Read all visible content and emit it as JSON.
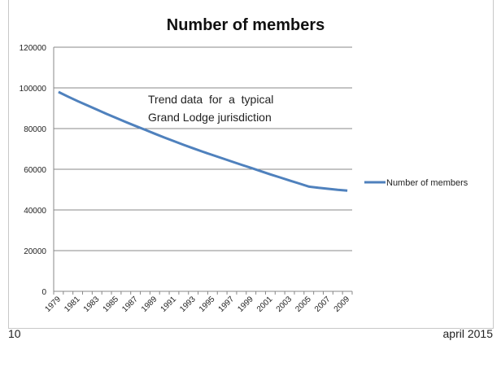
{
  "chart_data": {
    "type": "line",
    "title": "Number of members",
    "annotation": "Trend data for a typical Grand Lodge jurisdiction",
    "annotation_lines": [
      "Trend data  for  a  typical",
      "Grand Lodge jurisdiction"
    ],
    "xlabel": "",
    "ylabel": "",
    "ylim": [
      0,
      120000
    ],
    "yticks": [
      0,
      20000,
      40000,
      60000,
      80000,
      100000,
      120000
    ],
    "x": [
      1979,
      1980,
      1981,
      1982,
      1983,
      1984,
      1985,
      1986,
      1987,
      1988,
      1989,
      1990,
      1991,
      1992,
      1993,
      1994,
      1995,
      1996,
      1997,
      1998,
      1999,
      2000,
      2001,
      2002,
      2003,
      2004,
      2005,
      2006,
      2007,
      2008,
      2009
    ],
    "xtick_labels": [
      "1979",
      "1981",
      "1983",
      "1985",
      "1987",
      "1989",
      "1991",
      "1993",
      "1995",
      "1997",
      "1999",
      "2001",
      "2003",
      "2005",
      "2007",
      "2009"
    ],
    "series": [
      {
        "name": "Number of members",
        "color": "#4f81bd",
        "values": [
          98000,
          95700,
          93500,
          91400,
          89300,
          87200,
          85200,
          83200,
          81300,
          79400,
          77500,
          75600,
          73800,
          72000,
          70300,
          68600,
          67000,
          65400,
          63800,
          62200,
          60700,
          59100,
          57500,
          56000,
          54500,
          53000,
          51500,
          50900,
          50400,
          49900,
          49500
        ]
      }
    ],
    "grid": true,
    "legend": "right"
  },
  "footer": {
    "page": "10",
    "date": "april 2015"
  }
}
